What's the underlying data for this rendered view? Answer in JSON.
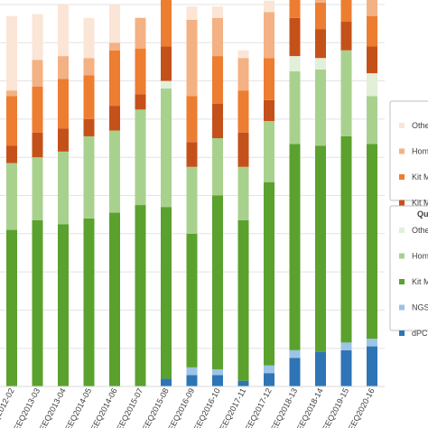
{
  "chart_data": {
    "type": "bar",
    "stacked": true,
    "categories": [
      "EEQ2012-02",
      "EEQ2013-03",
      "EEQ2013-04",
      "EEQ2014-05",
      "EEQ2014-06",
      "EEQ2015-07",
      "EEQ2015-08",
      "EEQ2016-09",
      "EEQ2016-10",
      "EEQ2017-11",
      "EEQ2017-12",
      "EEQ2018-13",
      "EEQ2018-14",
      "EEQ2019-15",
      "EEQ2020-16"
    ],
    "ylim": [
      0,
      100
    ],
    "grid": true,
    "groups": [
      {
        "name": "",
        "series": [
          {
            "name": "Kit M",
            "color": "#5ba12e",
            "values": [
              0,
              0,
              0,
              0,
              0,
              0,
              0,
              0,
              0,
              0,
              0,
              0,
              0,
              0,
              0
            ]
          },
          {
            "name": "Home",
            "color": "#a9d18e",
            "values": [
              0,
              0,
              0,
              0,
              0,
              0,
              0,
              0,
              0,
              0,
              0,
              0,
              0,
              0,
              0
            ]
          },
          {
            "name": "Oth",
            "color": "#e2efd9",
            "values": [
              0,
              0,
              0,
              0,
              0,
              0,
              0,
              0,
              0,
              0,
              0,
              0,
              0,
              0,
              0
            ]
          },
          {
            "name": "Kit M",
            "color": "#c5511a",
            "values": [
              4.5,
              6.5,
              6,
              4.5,
              6.5,
              4,
              9,
              6.5,
              9,
              9,
              5.5,
              10,
              7.5,
              7.5,
              7
            ]
          },
          {
            "name": "Kit M",
            "color": "#ed7d31",
            "values": [
              13,
              12,
              13,
              11.5,
              14.5,
              12,
              16.5,
              12,
              12.5,
              11,
              11,
              13,
              7,
              7.5,
              8
            ]
          },
          {
            "name": "Home",
            "color": "#f4b183",
            "values": [
              1.5,
              7,
              6,
              4.5,
              2,
              8,
              0,
              20,
              10,
              8.5,
              12,
              5.5,
              5,
              6,
              10
            ]
          },
          {
            "name": "Oth",
            "color": "#fbe5d6",
            "values": [
              19.5,
              12,
              13.5,
              10.5,
              10,
              0,
              4,
              3.5,
              3,
              2,
              3,
              0,
              0,
              0,
              0
            ]
          }
        ]
      },
      {
        "name": "Qu",
        "series": [
          {
            "name": "dPC",
            "color": "#2e75b6",
            "values": [
              0,
              0,
              0,
              0,
              0,
              0,
              2,
              3,
              3,
              1.5,
              3.5,
              7.5,
              9,
              9.5,
              10.5
            ]
          },
          {
            "name": "NGS",
            "color": "#9dc3e6",
            "values": [
              0,
              0,
              0,
              0,
              0,
              0,
              0,
              2,
              1.5,
              0,
              2,
              2,
              0,
              2,
              2
            ]
          },
          {
            "name": "Kit M",
            "color": "#5ba12e",
            "values": [
              41,
              43.5,
              42.5,
              44,
              45.5,
              47.5,
              45,
              35,
              45.5,
              42,
              48,
              54,
              54,
              54,
              51
            ]
          },
          {
            "name": "Home",
            "color": "#a9d18e",
            "values": [
              17.5,
              16.5,
              19,
              21.5,
              21.5,
              25,
              31,
              17.5,
              15,
              14,
              16,
              19,
              20,
              22.5,
              12.5
            ]
          },
          {
            "name": "Oth",
            "color": "#e2efd9",
            "values": [
              0,
              0,
              0,
              0,
              0,
              0,
              2,
              0,
              0,
              0,
              0,
              4,
              3,
              0,
              6
            ]
          }
        ]
      }
    ],
    "legend": [
      {
        "title": "",
        "items": [
          {
            "label": "Othe",
            "color": "#fbe5d6"
          },
          {
            "label": "Home",
            "color": "#f4b183"
          },
          {
            "label": "Kit M",
            "color": "#ed7d31"
          },
          {
            "label": "Kit M",
            "color": "#c5511a"
          }
        ]
      },
      {
        "title": "Qu",
        "items": [
          {
            "label": "Othe",
            "color": "#e2efd9"
          },
          {
            "label": "Home",
            "color": "#a9d18e"
          },
          {
            "label": "Kit M",
            "color": "#5ba12e"
          },
          {
            "label": "NGS",
            "color": "#9dc3e6"
          },
          {
            "label": "dPC",
            "color": "#2e75b6"
          }
        ]
      }
    ],
    "legend_position": "right"
  }
}
